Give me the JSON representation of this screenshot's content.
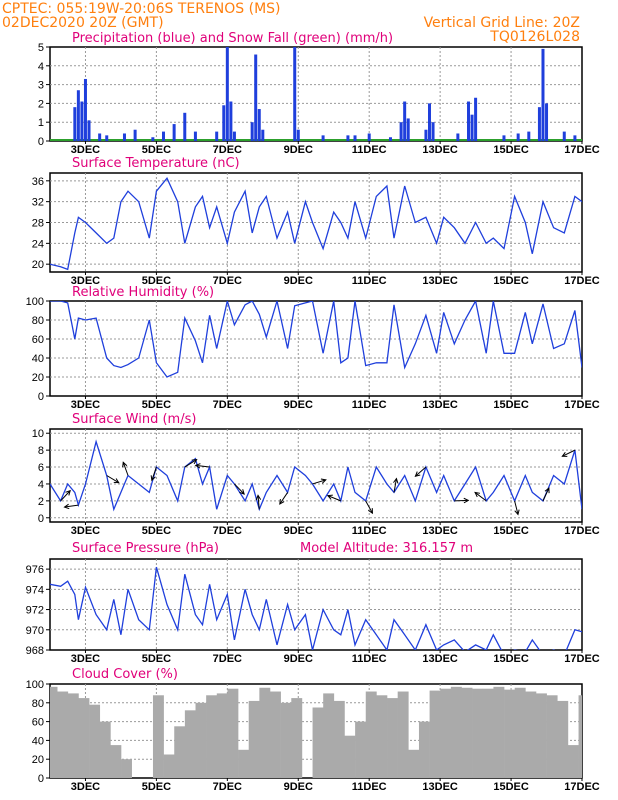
{
  "header": {
    "line1_left": "CPTEC:   055:19W-20:06S   TERENOS (MS)",
    "line2_left": "02DEC2020 20Z (GMT)",
    "line2_right": "Vertical Grid Line: 20Z",
    "line3_right": "TQ0126L028"
  },
  "colors": {
    "header": "#ff7f0e",
    "title": "#e0007a",
    "line": "#1f3fdc",
    "snow": "#2ca02c",
    "cloud": "#aaaaaa",
    "grid": "#999999"
  },
  "x_ticks": [
    "3DEC",
    "5DEC",
    "7DEC",
    "9DEC",
    "11DEC",
    "13DEC",
    "15DEC",
    "17DEC"
  ],
  "chart_data": [
    {
      "type": "bar",
      "title": "Precipitation (blue) and Snow Fall (green) (mm/h)",
      "ylim": [
        0,
        5
      ],
      "yticks": [
        "0",
        "1",
        "2",
        "3",
        "4",
        "5"
      ],
      "series": [
        {
          "name": "Precipitation",
          "points": [
            [
              0.7,
              1.8
            ],
            [
              0.8,
              2.7
            ],
            [
              0.9,
              2.1
            ],
            [
              1.0,
              3.3
            ],
            [
              1.1,
              1.1
            ],
            [
              1.4,
              0.4
            ],
            [
              1.6,
              0.3
            ],
            [
              2.1,
              0.4
            ],
            [
              2.4,
              0.6
            ],
            [
              2.9,
              0.2
            ],
            [
              3.2,
              0.5
            ],
            [
              3.5,
              0.9
            ],
            [
              3.8,
              1.5
            ],
            [
              4.1,
              0.5
            ],
            [
              4.7,
              0.5
            ],
            [
              4.9,
              1.9
            ],
            [
              5.0,
              5.0
            ],
            [
              5.1,
              2.1
            ],
            [
              5.2,
              0.5
            ],
            [
              5.7,
              1.0
            ],
            [
              5.8,
              4.6
            ],
            [
              5.9,
              1.7
            ],
            [
              6.0,
              0.6
            ],
            [
              6.9,
              5.0
            ],
            [
              7.0,
              0.6
            ],
            [
              7.7,
              0.3
            ],
            [
              8.4,
              0.3
            ],
            [
              8.6,
              0.3
            ],
            [
              9.0,
              0.4
            ],
            [
              9.6,
              0.2
            ],
            [
              9.9,
              1.0
            ],
            [
              10.0,
              2.1
            ],
            [
              10.1,
              1.2
            ],
            [
              10.6,
              0.6
            ],
            [
              10.7,
              2.0
            ],
            [
              10.8,
              1.0
            ],
            [
              11.5,
              0.4
            ],
            [
              11.8,
              2.1
            ],
            [
              11.9,
              1.4
            ],
            [
              12.0,
              2.3
            ],
            [
              12.8,
              0.3
            ],
            [
              13.2,
              0.4
            ],
            [
              13.5,
              0.5
            ],
            [
              13.8,
              1.8
            ],
            [
              13.9,
              4.9
            ],
            [
              14.0,
              2.0
            ],
            [
              14.5,
              0.5
            ],
            [
              14.8,
              0.3
            ],
            [
              15.2,
              0.8
            ],
            [
              15.3,
              0.5
            ]
          ]
        },
        {
          "name": "Snow Fall",
          "points": []
        }
      ]
    },
    {
      "type": "line",
      "title": "Surface Temperature (nC)",
      "ylim": [
        18.5,
        37.5
      ],
      "yticks": [
        "20",
        "24",
        "28",
        "32",
        "36"
      ],
      "x": [
        0,
        0.3,
        0.5,
        0.7,
        0.8,
        1.0,
        1.3,
        1.6,
        1.8,
        2.0,
        2.2,
        2.5,
        2.8,
        3.0,
        3.3,
        3.6,
        3.8,
        4.1,
        4.3,
        4.5,
        4.7,
        5.0,
        5.2,
        5.5,
        5.7,
        5.9,
        6.1,
        6.4,
        6.7,
        6.9,
        7.2,
        7.4,
        7.7,
        8.0,
        8.2,
        8.4,
        8.6,
        8.9,
        9.2,
        9.5,
        9.7,
        10.0,
        10.3,
        10.6,
        10.9,
        11.1,
        11.4,
        11.7,
        12.0,
        12.3,
        12.5,
        12.8,
        13.1,
        13.4,
        13.6,
        13.9,
        14.2,
        14.5,
        14.8,
        15.0
      ],
      "y": [
        20,
        19.5,
        19,
        26,
        29,
        28,
        26,
        24,
        25,
        32,
        34,
        32,
        25,
        34,
        36.5,
        32,
        24,
        31,
        33,
        27,
        31,
        24,
        30,
        34,
        26,
        31,
        33,
        25,
        30,
        24,
        32,
        28,
        23,
        30,
        28,
        25,
        32,
        25,
        33,
        35,
        25,
        35,
        28,
        29,
        24,
        29,
        27,
        24,
        28,
        24,
        25,
        23,
        33,
        28,
        22,
        32,
        27,
        26,
        33,
        32
      ]
    },
    {
      "type": "line",
      "title": "Relative Humidity (%)",
      "ylim": [
        0,
        100
      ],
      "yticks": [
        "0",
        "20",
        "40",
        "60",
        "80",
        "100"
      ],
      "x": [
        0,
        0.3,
        0.5,
        0.7,
        0.8,
        1.0,
        1.3,
        1.6,
        1.8,
        2.0,
        2.2,
        2.5,
        2.8,
        3.0,
        3.3,
        3.6,
        3.8,
        4.1,
        4.3,
        4.5,
        4.7,
        5.0,
        5.2,
        5.5,
        5.7,
        5.9,
        6.1,
        6.4,
        6.7,
        6.9,
        7.2,
        7.4,
        7.7,
        8.0,
        8.2,
        8.4,
        8.6,
        8.9,
        9.2,
        9.5,
        9.7,
        10.0,
        10.3,
        10.6,
        10.9,
        11.1,
        11.4,
        11.7,
        12.0,
        12.3,
        12.5,
        12.8,
        13.1,
        13.4,
        13.6,
        13.9,
        14.2,
        14.5,
        14.8,
        15.0
      ],
      "y": [
        100,
        100,
        98,
        60,
        82,
        80,
        82,
        40,
        32,
        30,
        33,
        40,
        80,
        35,
        20,
        25,
        82,
        58,
        35,
        85,
        50,
        100,
        75,
        96,
        100,
        86,
        62,
        100,
        50,
        95,
        98,
        100,
        45,
        100,
        35,
        40,
        100,
        32,
        35,
        35,
        96,
        30,
        55,
        85,
        45,
        88,
        55,
        80,
        100,
        45,
        100,
        45,
        45,
        88,
        55,
        97,
        50,
        55,
        90,
        30
      ]
    },
    {
      "type": "line",
      "title": "Surface Wind (m/s)",
      "ylim": [
        -0.5,
        10.5
      ],
      "yticks": [
        "0",
        "2",
        "4",
        "6",
        "8",
        "10"
      ],
      "x": [
        0,
        0.3,
        0.5,
        0.7,
        0.8,
        1.0,
        1.3,
        1.6,
        1.8,
        2.0,
        2.2,
        2.5,
        2.8,
        3.0,
        3.3,
        3.6,
        3.8,
        4.1,
        4.3,
        4.5,
        4.7,
        5.0,
        5.2,
        5.5,
        5.7,
        5.9,
        6.1,
        6.4,
        6.7,
        6.9,
        7.2,
        7.4,
        7.7,
        8.0,
        8.2,
        8.4,
        8.6,
        8.9,
        9.2,
        9.5,
        9.7,
        10.0,
        10.3,
        10.6,
        10.9,
        11.1,
        11.4,
        11.7,
        12.0,
        12.3,
        12.5,
        12.8,
        13.1,
        13.4,
        13.6,
        13.9,
        14.2,
        14.5,
        14.8,
        15.0
      ],
      "y": [
        4,
        2,
        4,
        3,
        1.5,
        4,
        9,
        5,
        1,
        3,
        5,
        4,
        3,
        6,
        5,
        2,
        6,
        7,
        4,
        6,
        1,
        5,
        4,
        2,
        4,
        1,
        3,
        5,
        3,
        6,
        5,
        4,
        2,
        4,
        2,
        6,
        3,
        2,
        6,
        4,
        3,
        5,
        2,
        6,
        3,
        5,
        2,
        4,
        6,
        2,
        3,
        5,
        2,
        5,
        3,
        2,
        5,
        4,
        8,
        1
      ]
    },
    {
      "type": "line",
      "title": "Surface Pressure (hPa)",
      "annotation": "Model Altitude: 316.157 m",
      "ylim": [
        968,
        977
      ],
      "yticks": [
        "968",
        "970",
        "972",
        "974",
        "976"
      ],
      "x": [
        0,
        0.3,
        0.5,
        0.7,
        0.8,
        1.0,
        1.3,
        1.6,
        1.8,
        2.0,
        2.2,
        2.5,
        2.8,
        3.0,
        3.3,
        3.6,
        3.8,
        4.1,
        4.3,
        4.5,
        4.7,
        5.0,
        5.2,
        5.5,
        5.7,
        5.9,
        6.1,
        6.4,
        6.7,
        6.9,
        7.2,
        7.4,
        7.7,
        8.0,
        8.2,
        8.4,
        8.6,
        8.9,
        9.2,
        9.5,
        9.7,
        10.0,
        10.3,
        10.6,
        10.9,
        11.1,
        11.4,
        11.7,
        12.0,
        12.3,
        12.5,
        12.8,
        13.1,
        13.4,
        13.6,
        13.9,
        14.2,
        14.5,
        14.8,
        15.0
      ],
      "y": [
        974.5,
        974.3,
        974.8,
        973.5,
        971,
        974.2,
        971.5,
        970,
        973,
        969.5,
        974,
        971,
        970,
        976.2,
        972.5,
        970,
        975.5,
        971.5,
        970.5,
        974.5,
        971,
        973.5,
        969,
        974,
        971.5,
        970,
        973,
        968.5,
        972.5,
        970,
        971.5,
        968,
        972,
        970,
        969.5,
        972,
        968.5,
        971,
        969.5,
        968,
        971,
        969.5,
        968,
        970.5,
        968,
        968.5,
        969,
        967.8,
        968.5,
        968,
        969.5,
        967.5,
        968,
        967.8,
        969,
        967.5,
        968,
        967.5,
        970,
        969.8
      ]
    },
    {
      "type": "bar",
      "title": "Cloud Cover (%)",
      "ylim": [
        0,
        100
      ],
      "yticks": [
        "0",
        "20",
        "40",
        "60",
        "80",
        "100"
      ],
      "x": [
        0.05,
        0.35,
        0.65,
        0.95,
        1.25,
        1.55,
        1.85,
        2.15,
        2.45,
        2.75,
        3.05,
        3.35,
        3.65,
        3.95,
        4.25,
        4.55,
        4.85,
        5.15,
        5.45,
        5.75,
        6.05,
        6.35,
        6.65,
        6.95,
        7.25,
        7.55,
        7.85,
        8.15,
        8.45,
        8.75,
        9.05,
        9.35,
        9.65,
        9.95,
        10.25,
        10.55,
        10.85,
        11.15,
        11.45,
        11.75,
        12.05,
        12.35,
        12.65,
        12.95,
        13.25,
        13.55,
        13.85,
        14.15,
        14.45,
        14.75,
        15.05
      ],
      "values": [
        97,
        92,
        90,
        85,
        78,
        60,
        35,
        20,
        0,
        0,
        88,
        25,
        55,
        72,
        80,
        88,
        90,
        95,
        30,
        82,
        96,
        92,
        80,
        85,
        0,
        75,
        90,
        82,
        45,
        60,
        92,
        88,
        85,
        92,
        30,
        60,
        93,
        95,
        97,
        96,
        95,
        95,
        97,
        94,
        96,
        92,
        90,
        88,
        82,
        35,
        88
      ]
    }
  ]
}
